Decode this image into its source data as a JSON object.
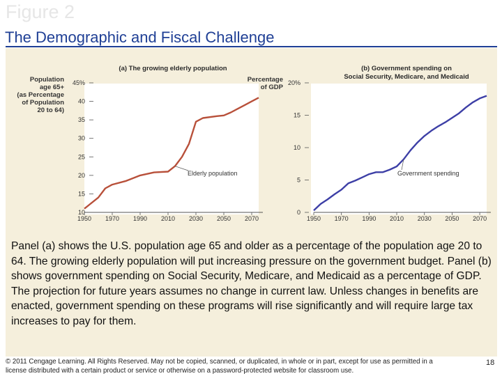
{
  "slide": {
    "ghost_title": "Figure 2",
    "title": "The Demographic and Fiscal Challenge",
    "caption": "Panel (a) shows the U.S. population age 65 and older as a percentage of the population age 20 to 64. The growing elderly population will put increasing pressure on the government budget. Panel (b) shows government spending on Social Security, Medicare, and Medicaid as a percentage of GDP. The projection for future years assumes no change in current law. Unless changes in benefits are enacted, government spending on these programs will rise significantly and will require large tax increases to pay for them.",
    "footer": "© 2011 Cengage Learning. All Rights Reserved. May not be copied, scanned, or duplicated, in whole or in part, except for use as permitted in a license distributed with a certain product or service or otherwise on a password-protected website for classroom use.",
    "page_number": "18"
  },
  "colors": {
    "title": "#1f3f95",
    "line_a": "#b8503a",
    "line_b": "#3d3fa6",
    "panel_bg": "#f5efdc"
  },
  "chart_data": [
    {
      "type": "line",
      "title": "(a) The growing elderly population",
      "ylabel": [
        "Population",
        "age 65+",
        "(as Percentage",
        "of Population",
        "20 to 64)"
      ],
      "xticks": [
        "1950",
        "1970",
        "1990",
        "2010",
        "2030",
        "2050",
        "2070"
      ],
      "yticks": [
        "10",
        "15",
        "20",
        "25",
        "30",
        "35",
        "40",
        "45%"
      ],
      "ylim": [
        10,
        45
      ],
      "xlim": [
        1950,
        2075
      ],
      "series": [
        {
          "x": [
            1950,
            1960,
            1965,
            1970,
            1980,
            1990,
            2000,
            2010,
            2015,
            2020,
            2025,
            2030,
            2035,
            2045,
            2050,
            2055,
            2060,
            2065,
            2070,
            2075
          ],
          "y": [
            11.0,
            14.0,
            16.5,
            17.5,
            18.5,
            20.0,
            20.8,
            21.0,
            22.5,
            25.0,
            28.5,
            34.5,
            35.5,
            36.0,
            36.2,
            37.0,
            38.0,
            39.0,
            40.0,
            41.0
          ]
        }
      ],
      "annotation": "Elderly population"
    },
    {
      "type": "line",
      "title": [
        "(b) Government spending on",
        "Social Security, Medicare, and Medicaid"
      ],
      "ylabel": [
        "Percentage",
        "of GDP"
      ],
      "xticks": [
        "1950",
        "1970",
        "1990",
        "2010",
        "2030",
        "2050",
        "2070"
      ],
      "yticks": [
        "0",
        "5",
        "10",
        "15",
        "20%"
      ],
      "ylim": [
        0,
        20
      ],
      "xlim": [
        1950,
        2075
      ],
      "series": [
        {
          "x": [
            1950,
            1955,
            1960,
            1965,
            1970,
            1975,
            1980,
            1985,
            1990,
            1995,
            2000,
            2005,
            2010,
            2015,
            2020,
            2025,
            2030,
            2035,
            2040,
            2045,
            2050,
            2055,
            2060,
            2065,
            2070,
            2075
          ],
          "y": [
            0.3,
            1.3,
            2.0,
            2.8,
            3.5,
            4.5,
            4.9,
            5.4,
            5.9,
            6.2,
            6.2,
            6.6,
            7.1,
            8.2,
            9.6,
            10.8,
            11.8,
            12.6,
            13.3,
            13.9,
            14.6,
            15.3,
            16.2,
            17.0,
            17.6,
            18.0
          ]
        }
      ],
      "annotation": "Government spending"
    }
  ]
}
